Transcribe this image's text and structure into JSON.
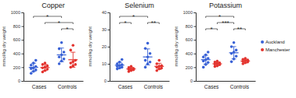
{
  "chart_data": [
    {
      "type": "scatter",
      "title": "Copper",
      "y_label": "mmol/kg dry weight",
      "categories": [
        "Cases",
        "Controls"
      ],
      "ylim": [
        0,
        1000
      ],
      "yticks": [
        0,
        200,
        400,
        600,
        800,
        1000
      ],
      "series": [
        {
          "name": "Auckland",
          "color": "#3a62d6",
          "values": [
            [
              110,
              140,
              160,
              180,
              190,
              210,
              230,
              260,
              300
            ],
            [
              250,
              290,
              320,
              350,
              380,
              420,
              470,
              560
            ]
          ],
          "means": [
            198,
            380
          ],
          "errors": [
            60,
            100
          ]
        },
        {
          "name": "Manchester",
          "color": "#e3342f",
          "values": [
            [
              130,
              150,
              170,
              190,
              200,
              220,
              240,
              260
            ],
            [
              200,
              220,
              240,
              260,
              280,
              300,
              450,
              520
            ]
          ],
          "means": [
            195,
            309
          ],
          "errors": [
            45,
            110
          ]
        }
      ],
      "comparisons": [
        {
          "groups": [
            [
              0,
              0
            ],
            [
              1,
              0
            ]
          ],
          "label": "*"
        },
        {
          "groups": [
            [
              0,
              1
            ],
            [
              1,
              1
            ]
          ],
          "label": "*"
        },
        {
          "groups": [
            [
              1,
              0
            ],
            [
              1,
              1
            ]
          ],
          "label": "*"
        }
      ]
    },
    {
      "type": "scatter",
      "title": "Selenium",
      "y_label": "mmol/kg dry weight",
      "categories": [
        "Cases",
        "Controls"
      ],
      "ylim": [
        0,
        40
      ],
      "yticks": [
        0,
        10,
        20,
        30,
        40
      ],
      "series": [
        {
          "name": "Auckland",
          "color": "#3a62d6",
          "values": [
            [
              7,
              7.5,
              8,
              8.5,
              9,
              9.5,
              10,
              11,
              12.5
            ],
            [
              8,
              10,
              11,
              12,
              14,
              16,
              19,
              22
            ]
          ],
          "means": [
            9.2,
            14
          ],
          "errors": [
            1.7,
            4.7
          ]
        },
        {
          "name": "Manchester",
          "color": "#e3342f",
          "values": [
            [
              5.5,
              6,
              6.5,
              6.8,
              7,
              7.3,
              7.8,
              8.5
            ],
            [
              6,
              7,
              7.5,
              8,
              8.5,
              9,
              10,
              12
            ]
          ],
          "means": [
            7,
            8.5
          ],
          "errors": [
            0.9,
            1.8
          ]
        }
      ],
      "comparisons": [
        {
          "groups": [
            [
              0,
              0
            ],
            [
              1,
              0
            ]
          ],
          "label": "*"
        },
        {
          "groups": [
            [
              0,
              0
            ],
            [
              0,
              1
            ]
          ],
          "label": "*"
        },
        {
          "groups": [
            [
              1,
              0
            ],
            [
              1,
              1
            ]
          ],
          "label": "**"
        }
      ]
    },
    {
      "type": "scatter",
      "title": "Potassium",
      "y_label": "mmol/kg dry weight",
      "categories": [
        "Cases",
        "Controls"
      ],
      "ylim": [
        0,
        1000
      ],
      "yticks": [
        0,
        200,
        400,
        600,
        800,
        1000
      ],
      "legend": "right",
      "series": [
        {
          "name": "Auckland",
          "color": "#3a62d6",
          "values": [
            [
              200,
              240,
              270,
              290,
              310,
              330,
              350,
              380,
              420
            ],
            [
              280,
              320,
              360,
              400,
              420,
              450,
              500,
              560
            ]
          ],
          "means": [
            310,
            411
          ],
          "errors": [
            65,
            90
          ]
        },
        {
          "name": "Manchester",
          "color": "#e3342f",
          "values": [
            [
              210,
              220,
              235,
              245,
              255,
              265,
              275,
              290
            ],
            [
              250,
              265,
              275,
              285,
              295,
              305,
              315,
              330
            ]
          ],
          "means": [
            250,
            290
          ],
          "errors": [
            25,
            25
          ]
        }
      ],
      "comparisons": [
        {
          "groups": [
            [
              0,
              0
            ],
            [
              1,
              0
            ]
          ],
          "label": "*"
        },
        {
          "groups": [
            [
              0,
              1
            ],
            [
              1,
              0
            ]
          ],
          "label": "***"
        },
        {
          "groups": [
            [
              0,
              0
            ],
            [
              0,
              1
            ]
          ],
          "label": "*"
        },
        {
          "groups": [
            [
              1,
              0
            ],
            [
              1,
              1
            ]
          ],
          "label": "**"
        }
      ]
    }
  ]
}
